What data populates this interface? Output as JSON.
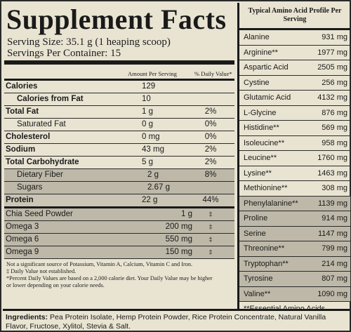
{
  "title": "Supplement Facts",
  "serving_size": "Serving Size: 35.1 g (1 heaping scoop)",
  "servings_per_container": "Servings Per Container: 15",
  "column_headers": {
    "amount": "Amount Per Serving",
    "daily_value": "% Daily Value*"
  },
  "nutrients": [
    {
      "name": "Calories",
      "amount": "129",
      "dv": "",
      "style": "b"
    },
    {
      "name": "Calories from Fat",
      "amount": "10",
      "dv": "",
      "style": "ind-bold"
    },
    {
      "name": "Total Fat",
      "amount": "1 g",
      "dv": "2%",
      "style": "b"
    },
    {
      "name": "Saturated Fat",
      "amount": "0 g",
      "dv": "0%",
      "style": "ind"
    },
    {
      "name": "Cholesterol",
      "amount": "0 mg",
      "dv": "0%",
      "style": "b"
    },
    {
      "name": "Sodium",
      "amount": "43 mg",
      "dv": "2%",
      "style": "b"
    },
    {
      "name": "Total Carbohydrate",
      "amount": "5 g",
      "dv": "2%",
      "style": "b"
    },
    {
      "name": "Dietary Fiber",
      "amount": "2 g",
      "dv": "8%",
      "style": "ind-shade"
    },
    {
      "name": "Sugars",
      "amount": "2.67 g",
      "dv": "",
      "style": "ind-shade"
    },
    {
      "name": "Protein",
      "amount": "22 g",
      "dv": "44%",
      "style": "b-shade"
    },
    {
      "name": "Chia Seed Powder",
      "amount": "1 g",
      "dv": "‡",
      "style": "omega"
    },
    {
      "name": "Omega 3",
      "amount": "200 mg",
      "dv": "‡",
      "style": "omega"
    },
    {
      "name": "Omega 6",
      "amount": "550 mg",
      "dv": "‡",
      "style": "omega"
    },
    {
      "name": "Omega 9",
      "amount": "150 mg",
      "dv": "‡",
      "style": "omega"
    }
  ],
  "notes": [
    "Not a significant source of Potassium, Vitamin A, Calcium, Vitamin C and Iron.",
    "‡ Daily Value not established.",
    "*Percent Daily Values are based on a 2,000 calorie diet.  Your Daily Value may be higher",
    "or lower depending on your calorie needs."
  ],
  "amino_header": "Typical Amino Acid Profile Per Serving",
  "amino_acids": [
    {
      "name": "Alanine",
      "amount": "931 mg",
      "shade": false
    },
    {
      "name": "Arginine**",
      "amount": "1977 mg",
      "shade": false
    },
    {
      "name": "Aspartic Acid",
      "amount": "2505 mg",
      "shade": false
    },
    {
      "name": "Cystine",
      "amount": "256 mg",
      "shade": false
    },
    {
      "name": "Glutamic Acid",
      "amount": "4132 mg",
      "shade": false
    },
    {
      "name": "L-Glycine",
      "amount": "876 mg",
      "shade": false
    },
    {
      "name": "Histidine**",
      "amount": "569 mg",
      "shade": false
    },
    {
      "name": "Isoleucine**",
      "amount": "958 mg",
      "shade": false
    },
    {
      "name": "Leucine**",
      "amount": "1760 mg",
      "shade": false
    },
    {
      "name": "Lysine**",
      "amount": "1463 mg",
      "shade": false
    },
    {
      "name": "Methionine**",
      "amount": "308 mg",
      "shade": false
    },
    {
      "name": "Phenylalanine**",
      "amount": "1139 mg",
      "shade": true
    },
    {
      "name": "Proline",
      "amount": "914 mg",
      "shade": true
    },
    {
      "name": "Serine",
      "amount": "1147 mg",
      "shade": true
    },
    {
      "name": "Threonine**",
      "amount": "799 mg",
      "shade": true
    },
    {
      "name": "Tryptophan**",
      "amount": "214 mg",
      "shade": true
    },
    {
      "name": "Tyrosine",
      "amount": "807 mg",
      "shade": true
    },
    {
      "name": "Valine**",
      "amount": "1090 mg",
      "shade": true
    }
  ],
  "amino_footnote": "**Essential Amino Acids",
  "ingredients_label": "Ingredients:",
  "ingredients_text": "Pea Protein Isolate, Hemp Protein Powder, Rice Protein Concentrate, Natural Vanilla Flavor, Fructose, Xylitol, Stevia & Salt."
}
